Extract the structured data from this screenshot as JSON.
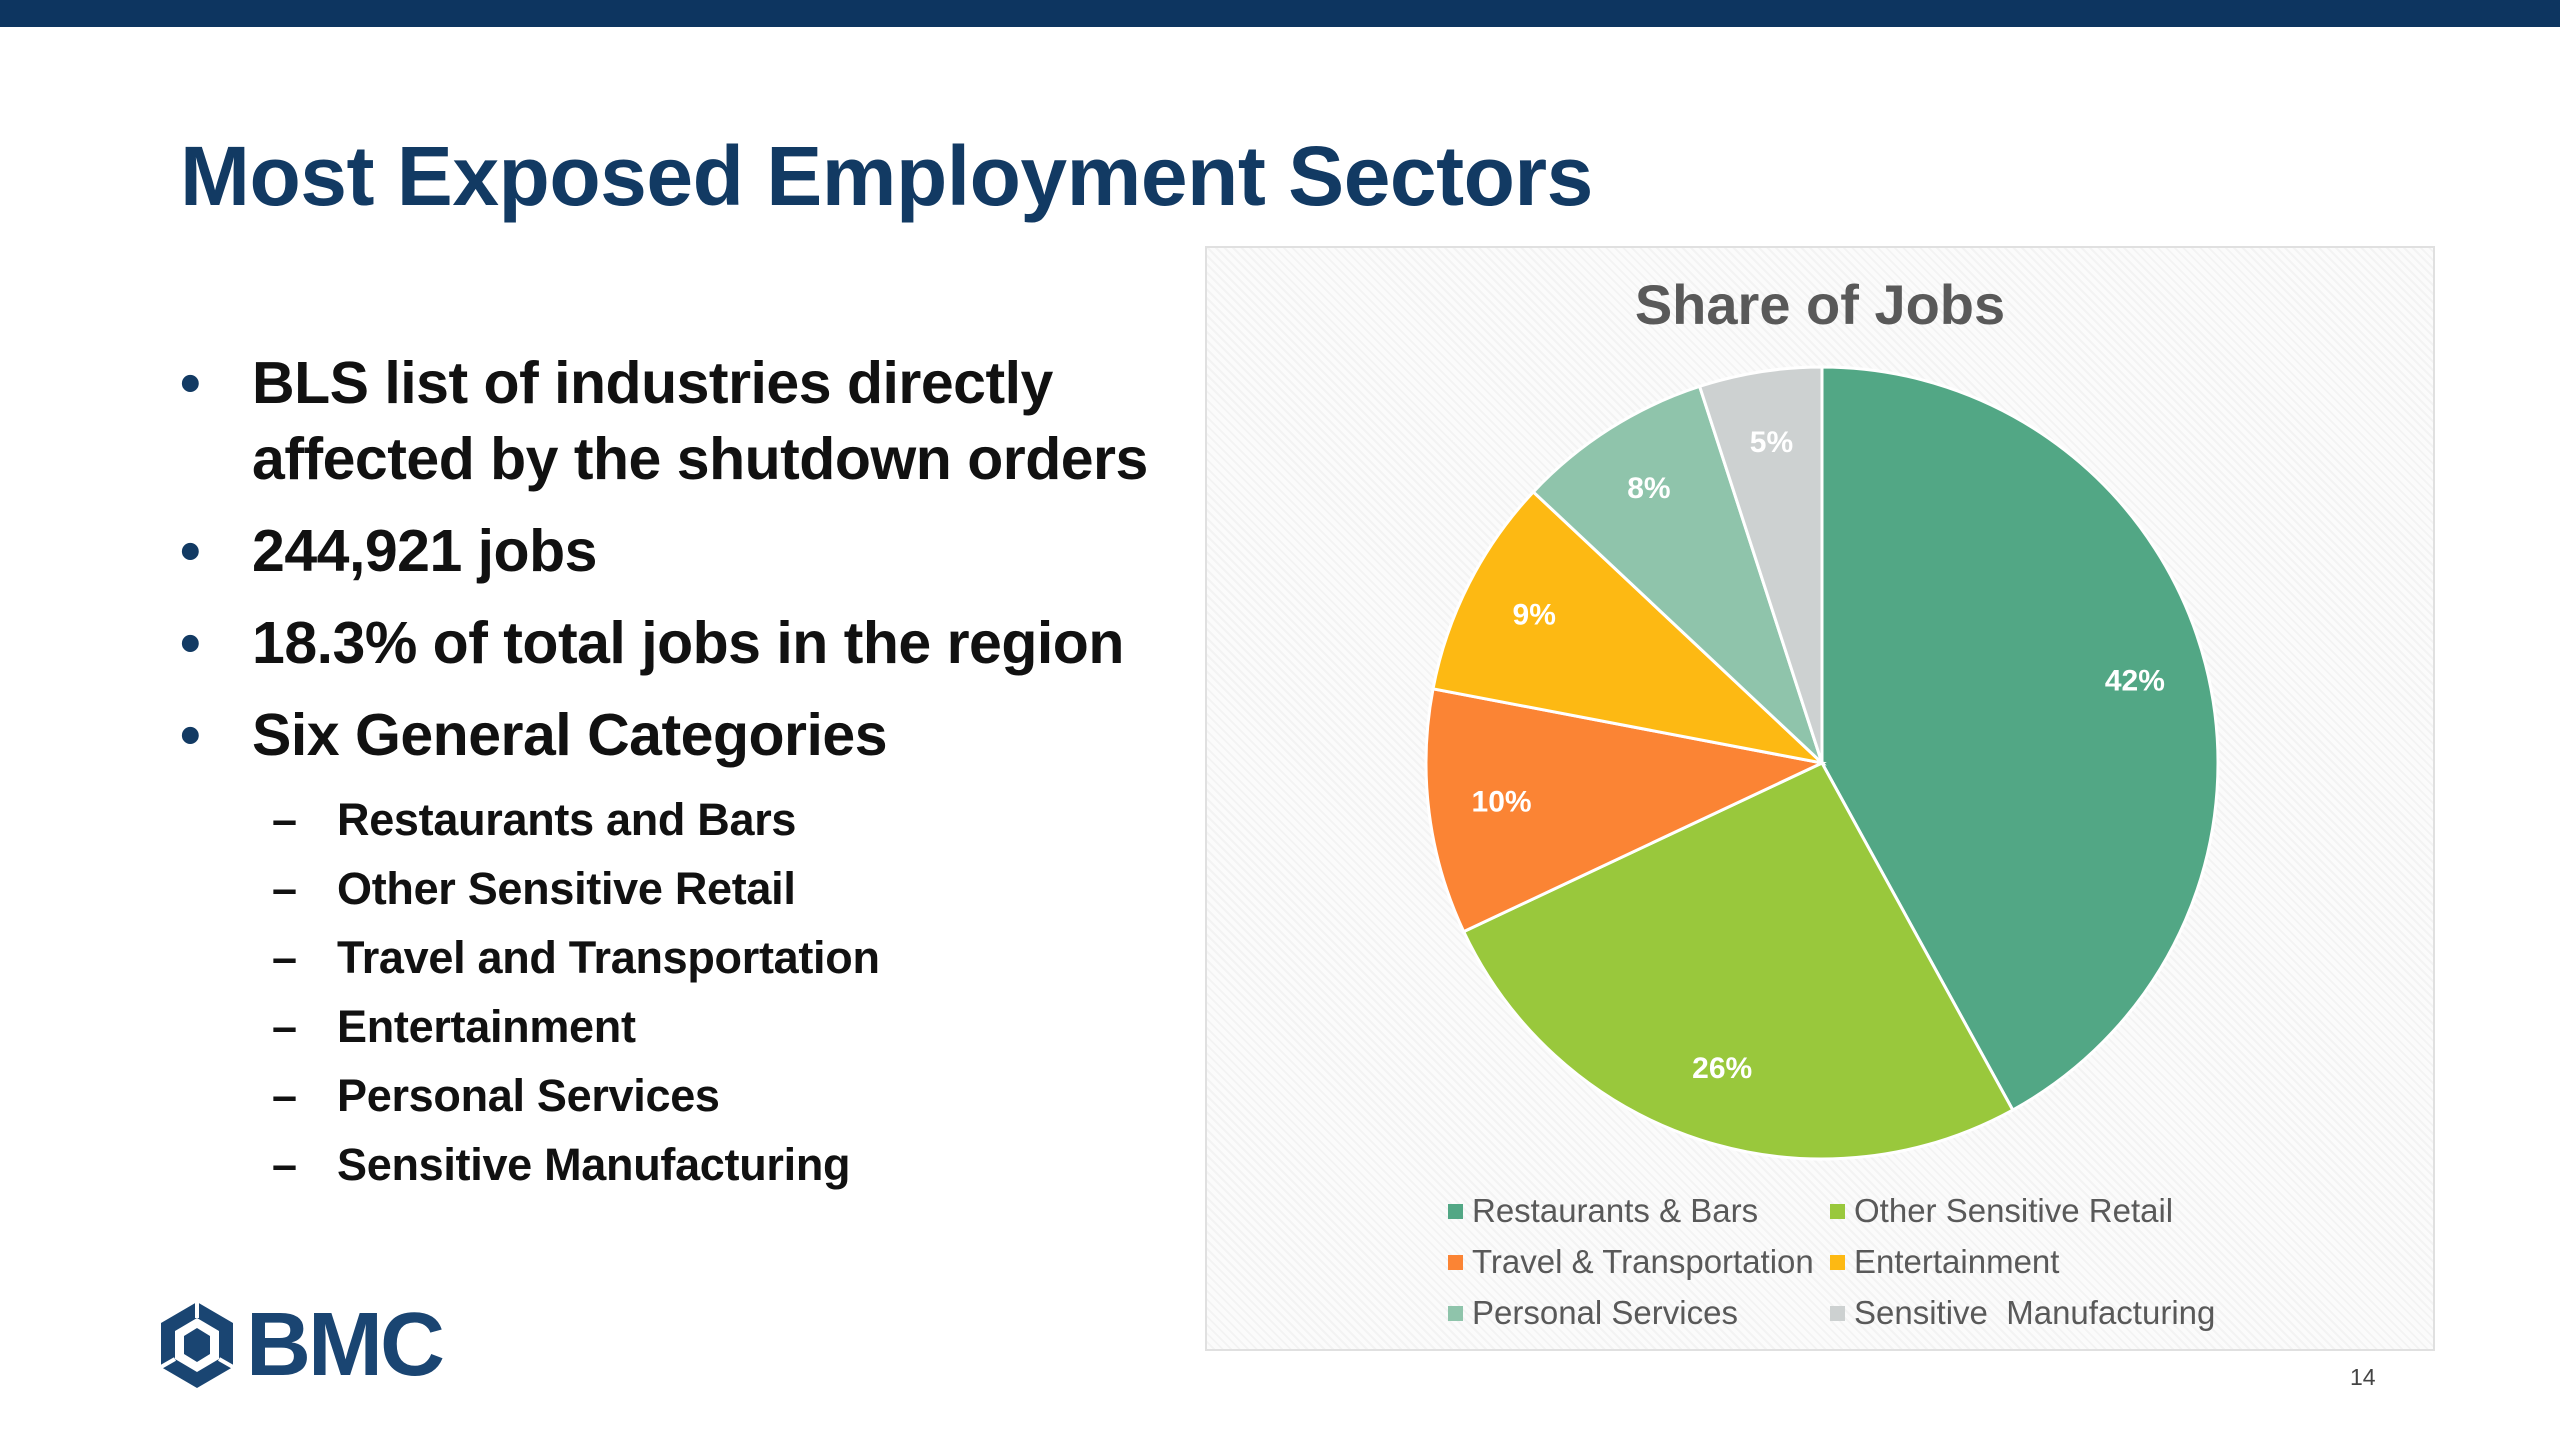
{
  "slide": {
    "title": "Most Exposed Employment Sectors",
    "page_number": "14",
    "logo_text": "BMC"
  },
  "bullets": [
    "BLS list of industries directly affected by the shutdown orders",
    "244,921 jobs",
    "18.3% of total jobs in the region",
    "Six General Categories"
  ],
  "sub_bullets": [
    "Restaurants and Bars",
    "Other Sensitive Retail",
    "Travel and Transportation",
    "Entertainment",
    "Personal Services",
    "Sensitive Manufacturing"
  ],
  "chart_data": {
    "type": "pie",
    "title": "Share of Jobs",
    "start_angle_deg": 0,
    "direction": "clockwise",
    "legend_position": "bottom",
    "slices": [
      {
        "label": "Restaurants & Bars",
        "value": 42,
        "display": "42%",
        "color": "#52a785"
      },
      {
        "label": "Other Sensitive Retail",
        "value": 26,
        "display": "26%",
        "color": "#99c83c"
      },
      {
        "label": "Travel & Transportation",
        "value": 10,
        "display": "10%",
        "color": "#fb8434"
      },
      {
        "label": "Entertainment",
        "value": 9,
        "display": "9%",
        "color": "#fdb913"
      },
      {
        "label": "Personal Services",
        "value": 8,
        "display": "8%",
        "color": "#8fc4ab"
      },
      {
        "label": "Sensitive  Manufacturing",
        "value": 5,
        "display": "5%",
        "color": "#cdd1d1"
      }
    ]
  }
}
